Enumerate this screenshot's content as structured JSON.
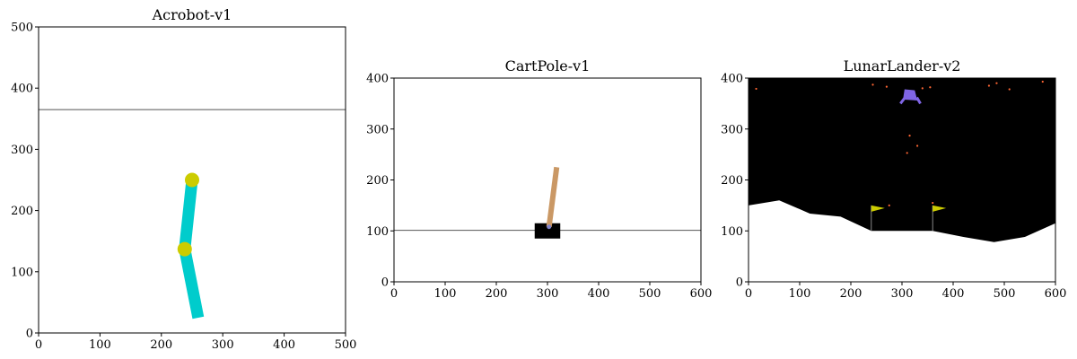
{
  "panels": [
    {
      "id": "acrobot",
      "title": "Acrobot-v1",
      "xlim": [
        0,
        500
      ],
      "ylim": [
        0,
        500
      ],
      "xticks": [
        0,
        100,
        200,
        300,
        400,
        500
      ],
      "yticks": [
        0,
        100,
        200,
        300,
        400,
        500
      ],
      "background": "#ffffff",
      "reference_line_y": 365,
      "links": [
        {
          "from": [
            250,
            250
          ],
          "to": [
            238,
            137
          ],
          "color": "#00cccc"
        },
        {
          "from": [
            238,
            137
          ],
          "to": [
            260,
            25
          ],
          "color": "#00cccc"
        }
      ],
      "joints": [
        {
          "x": 250,
          "y": 250,
          "color": "#cccc00"
        },
        {
          "x": 238,
          "y": 137,
          "color": "#cccc00"
        }
      ]
    },
    {
      "id": "cartpole",
      "title": "CartPole-v1",
      "xlim": [
        0,
        600
      ],
      "ylim": [
        0,
        400
      ],
      "xticks": [
        0,
        100,
        200,
        300,
        400,
        500,
        600
      ],
      "yticks": [
        0,
        100,
        200,
        300,
        400
      ],
      "background": "#ffffff",
      "track_y": 101,
      "cart": {
        "x_center": 300,
        "y_center": 100,
        "width": 50,
        "height": 30,
        "color": "#000000"
      },
      "pole": {
        "from": [
          303,
          108
        ],
        "to": [
          318,
          225
        ],
        "color": "#ca9865"
      },
      "axle": {
        "x": 303,
        "y": 108,
        "color": "#8184cb"
      }
    },
    {
      "id": "lunarlander",
      "title": "LunarLander-v2",
      "xlim": [
        0,
        600
      ],
      "ylim": [
        0,
        400
      ],
      "xticks": [
        0,
        100,
        200,
        300,
        400,
        500,
        600
      ],
      "yticks": [
        0,
        100,
        200,
        300,
        400
      ],
      "background": "#000000",
      "terrain_color": "#ffffff",
      "terrain": [
        [
          0,
          150
        ],
        [
          60,
          160
        ],
        [
          120,
          134
        ],
        [
          180,
          128
        ],
        [
          240,
          100
        ],
        [
          360,
          100
        ],
        [
          420,
          88
        ],
        [
          480,
          78
        ],
        [
          540,
          88
        ],
        [
          600,
          115
        ]
      ],
      "flags": [
        {
          "x": 240,
          "y_base": 100,
          "height": 50,
          "color": "#cccc00"
        },
        {
          "x": 360,
          "y_base": 100,
          "height": 50,
          "color": "#cccc00"
        }
      ],
      "lander": {
        "body": [
          [
            305,
            378
          ],
          [
            325,
            376
          ],
          [
            330,
            356
          ],
          [
            302,
            358
          ]
        ],
        "color": "#8066e6",
        "legs": [
          {
            "from": [
              306,
              362
            ],
            "to": [
              297,
              350
            ]
          },
          {
            "from": [
              329,
              362
            ],
            "to": [
              336,
              350
            ]
          }
        ]
      },
      "particles_color": "#ff6633",
      "particles": [
        {
          "x": 15,
          "y": 379
        },
        {
          "x": 243,
          "y": 387
        },
        {
          "x": 270,
          "y": 383
        },
        {
          "x": 340,
          "y": 380
        },
        {
          "x": 355,
          "y": 382
        },
        {
          "x": 470,
          "y": 385
        },
        {
          "x": 485,
          "y": 390
        },
        {
          "x": 510,
          "y": 378
        },
        {
          "x": 575,
          "y": 393
        },
        {
          "x": 315,
          "y": 287
        },
        {
          "x": 330,
          "y": 267
        },
        {
          "x": 310,
          "y": 253
        },
        {
          "x": 275,
          "y": 150
        },
        {
          "x": 360,
          "y": 155
        }
      ]
    }
  ]
}
